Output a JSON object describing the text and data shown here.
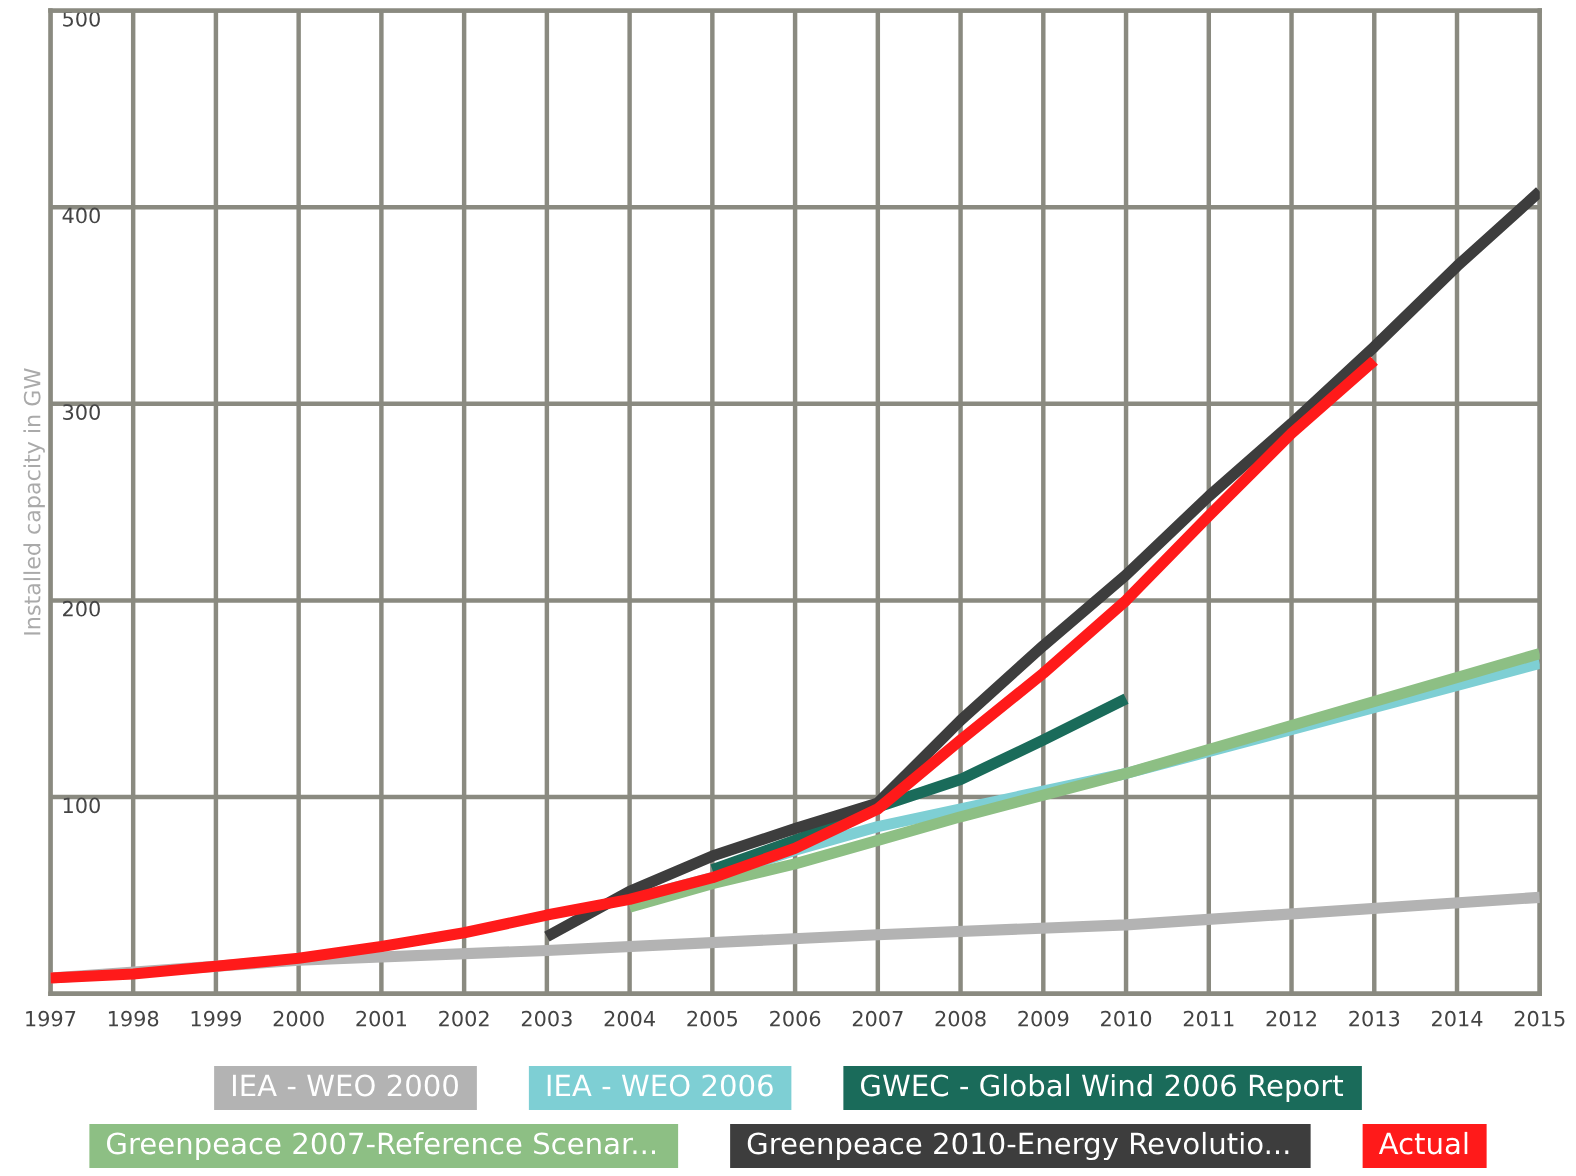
{
  "chart_data": {
    "type": "line",
    "ylabel": "Installed capacity in GW",
    "xlim": [
      1997,
      2015
    ],
    "xticks": [
      1997,
      1998,
      1999,
      2000,
      2001,
      2002,
      2003,
      2004,
      2005,
      2006,
      2007,
      2008,
      2009,
      2010,
      2011,
      2012,
      2013,
      2014,
      2015
    ],
    "ylim": [
      0,
      500
    ],
    "yticks": [
      {
        "value": 0,
        "label": null
      },
      100,
      200,
      300,
      400,
      500
    ],
    "grid": true,
    "legend": "bottom",
    "line_style": "solid",
    "marker": "none",
    "series": [
      {
        "name": "IEA - WEO 2000",
        "color": "#b3b3b3",
        "x": [
          1997,
          2000,
          2003,
          2007,
          2010,
          2015
        ],
        "values": [
          8,
          17,
          22,
          30,
          35,
          49
        ]
      },
      {
        "name": "IEA - WEO 2006",
        "color": "#7ecfd4",
        "x": [
          2004,
          2005,
          2006,
          2007,
          2010,
          2015
        ],
        "values": [
          48,
          59,
          73,
          85,
          112,
          168
        ]
      },
      {
        "name": "GWEC - Global Wind 2006 Report",
        "color": "#1a6b5a",
        "x": [
          2005,
          2006,
          2007,
          2008,
          2009,
          2010
        ],
        "values": [
          63,
          78,
          95,
          109,
          129,
          150
        ]
      },
      {
        "name": "Greenpeace 2007-Reference Scenar...",
        "color": "#8dbf84",
        "x": [
          2004,
          2005,
          2006,
          2007,
          2008,
          2009,
          2010,
          2015
        ],
        "values": [
          44,
          56,
          66,
          78,
          90,
          101,
          112,
          173
        ]
      },
      {
        "name": "Greenpeace 2010-Energy Revolutio...",
        "color": "#3d3d3d",
        "x": [
          2003,
          2004,
          2005,
          2006,
          2007,
          2008,
          2009,
          2010,
          2011,
          2012,
          2013,
          2014,
          2015
        ],
        "values": [
          29,
          52,
          70,
          84,
          97,
          139,
          177,
          213,
          253,
          290,
          329,
          370,
          408
        ]
      },
      {
        "name": "Actual",
        "color": "#ff1a1a",
        "x": [
          1997,
          1998,
          1999,
          2000,
          2001,
          2002,
          2003,
          2004,
          2005,
          2006,
          2007,
          2008,
          2009,
          2010,
          2011,
          2012,
          2013
        ],
        "values": [
          8,
          10,
          14,
          18,
          24,
          31,
          40,
          48,
          59,
          74,
          94,
          129,
          163,
          200,
          243,
          285,
          322
        ]
      }
    ]
  }
}
